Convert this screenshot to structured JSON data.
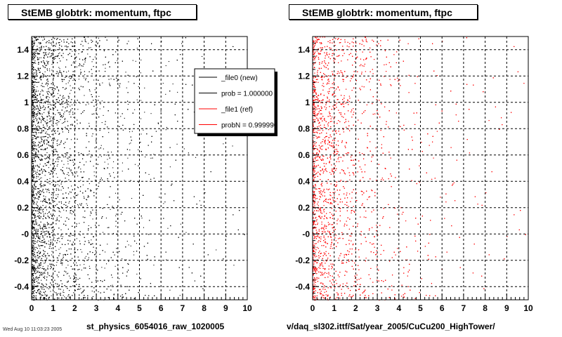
{
  "colors": {
    "new": "#000000",
    "ref": "#ff0000",
    "grid": "#000000",
    "legend_shadow": "#000000"
  },
  "footer": "Wed Aug 10 11:03:23 2005",
  "chart_data": [
    {
      "type": "scatter",
      "title": "StEMB globtrk: momentum, ftpc",
      "xlabel": "st_physics_6054016_raw_1020005",
      "ylabel": "",
      "xlim": [
        0,
        10
      ],
      "ylim": [
        -0.5,
        1.5
      ],
      "xticks": [
        0,
        1,
        2,
        3,
        4,
        5,
        6,
        7,
        8,
        9,
        10
      ],
      "xtick_labels": [
        "0",
        "1",
        "2",
        "3",
        "4",
        "5",
        "6",
        "7",
        "8",
        "9",
        "10"
      ],
      "yticks": [
        -0.4,
        -0.2,
        0,
        0.2,
        0.4,
        0.6,
        0.8,
        1,
        1.2,
        1.4
      ],
      "ytick_labels": [
        "-0.4",
        "-0.2",
        "-0",
        "0.2",
        "0.4",
        "0.6",
        "0.8",
        "1",
        "1.2",
        "1.4"
      ],
      "grid": true,
      "series": [
        {
          "name": "_file0 (new)",
          "color": "#000000",
          "density_by_x": [
            [
              0,
              1.0
            ],
            [
              1,
              0.75
            ],
            [
              2,
              0.45
            ],
            [
              3,
              0.28
            ],
            [
              4,
              0.17
            ],
            [
              5,
              0.1
            ],
            [
              6,
              0.07
            ],
            [
              7,
              0.05
            ],
            [
              8,
              0.035
            ],
            [
              9,
              0.025
            ],
            [
              10,
              0.02
            ]
          ]
        }
      ],
      "legend": {
        "placement": "top-right",
        "entries": [
          {
            "label": "_file0 (new)",
            "color": "#000000"
          },
          {
            "label": "prob = 1.000000",
            "color": "#000000"
          },
          {
            "label": "_file1 (ref)",
            "color": "#ff0000"
          },
          {
            "label": "probN = 0.999990",
            "color": "#ff0000"
          }
        ]
      }
    },
    {
      "type": "scatter",
      "title": "StEMB globtrk: momentum, ftpc",
      "xlabel": "v/daq_sl302.ittf/Sat/year_2005/CuCu200_HighTower/",
      "ylabel": "",
      "xlim": [
        0,
        10
      ],
      "ylim": [
        -0.5,
        1.5
      ],
      "xticks": [
        0,
        1,
        2,
        3,
        4,
        5,
        6,
        7,
        8,
        9,
        10
      ],
      "xtick_labels": [
        "0",
        "1",
        "2",
        "3",
        "4",
        "5",
        "6",
        "7",
        "8",
        "9",
        "10"
      ],
      "yticks": [
        -0.4,
        -0.2,
        0,
        0.2,
        0.4,
        0.6,
        0.8,
        1,
        1.2,
        1.4
      ],
      "ytick_labels": [
        "-0.4",
        "-0.2",
        "-0",
        "0.2",
        "0.4",
        "0.6",
        "0.8",
        "1",
        "1.2",
        "1.4"
      ],
      "grid": true,
      "series": [
        {
          "name": "_file1 (ref)",
          "color": "#ff0000",
          "density_by_x": [
            [
              0,
              1.0
            ],
            [
              1,
              0.7
            ],
            [
              2,
              0.42
            ],
            [
              3,
              0.26
            ],
            [
              4,
              0.16
            ],
            [
              5,
              0.1
            ],
            [
              6,
              0.07
            ],
            [
              7,
              0.05
            ],
            [
              8,
              0.035
            ],
            [
              9,
              0.025
            ],
            [
              10,
              0.02
            ]
          ]
        }
      ]
    }
  ]
}
